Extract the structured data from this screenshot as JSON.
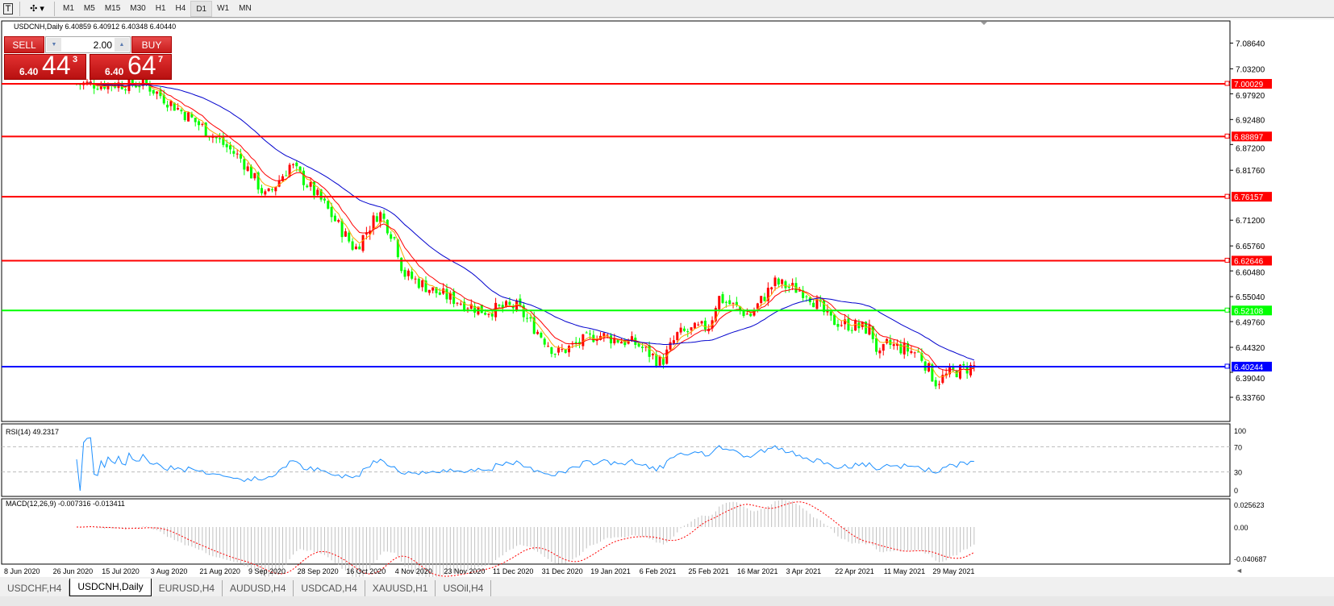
{
  "toolbar": {
    "text_tool": "T",
    "timeframes": [
      "M1",
      "M5",
      "M15",
      "M30",
      "H1",
      "H4",
      "D1",
      "W1",
      "MN"
    ],
    "active_timeframe": "D1"
  },
  "chart": {
    "header": "USDCNH,Daily  6.40859 6.40912 6.40348 6.40440",
    "trade_panel": {
      "sell_label": "SELL",
      "buy_label": "BUY",
      "lot": "2.00",
      "sell_prefix": "6.40",
      "sell_big": "44",
      "sell_sup": "3",
      "buy_prefix": "6.40",
      "buy_big": "64",
      "buy_sup": "7"
    },
    "price_axis": [
      "7.08640",
      "7.03200",
      "6.97920",
      "6.92480",
      "6.87200",
      "6.81760",
      "6.71200",
      "6.65760",
      "6.60480",
      "6.55040",
      "6.49760",
      "6.44320",
      "6.39040",
      "6.33760"
    ],
    "hlines": [
      {
        "price": "7.00029",
        "color": "#ff0000"
      },
      {
        "price": "6.88897",
        "color": "#ff0000"
      },
      {
        "price": "6.76157",
        "color": "#ff0000"
      },
      {
        "price": "6.62646",
        "color": "#ff0000"
      },
      {
        "price": "6.52108",
        "color": "#00ff00"
      },
      {
        "price": "6.40244",
        "color": "#0000ff"
      }
    ],
    "candle_colors": {
      "up": "#ff0000",
      "down": "#00ff00"
    },
    "rsi": {
      "label": "RSI(14) 49.2317",
      "levels": [
        "100",
        "70",
        "30",
        "0"
      ]
    },
    "macd": {
      "label": "MACD(12,26,9) -0.007316 -0.013411",
      "levels": [
        "0.025623",
        "0.00",
        "-0.040687"
      ]
    },
    "dates": [
      "8 Jun 2020",
      "26 Jun 2020",
      "15 Jul 2020",
      "3 Aug 2020",
      "21 Aug 2020",
      "9 Sep 2020",
      "28 Sep 2020",
      "16 Oct 2020",
      "4 Nov 2020",
      "23 Nov 2020",
      "11 Dec 2020",
      "31 Dec 2020",
      "19 Jan 2021",
      "6 Feb 2021",
      "25 Feb 2021",
      "16 Mar 2021",
      "3 Apr 2021",
      "22 Apr 2021",
      "11 May 2021",
      "29 May 2021"
    ]
  },
  "tabs": [
    {
      "label": "USDCHF,H4"
    },
    {
      "label": "USDCNH,Daily",
      "active": true
    },
    {
      "label": "EURUSD,H4"
    },
    {
      "label": "AUDUSD,H4"
    },
    {
      "label": "USDCAD,H4"
    },
    {
      "label": "XAUUSD,H1"
    },
    {
      "label": "USOil,H4"
    }
  ]
}
